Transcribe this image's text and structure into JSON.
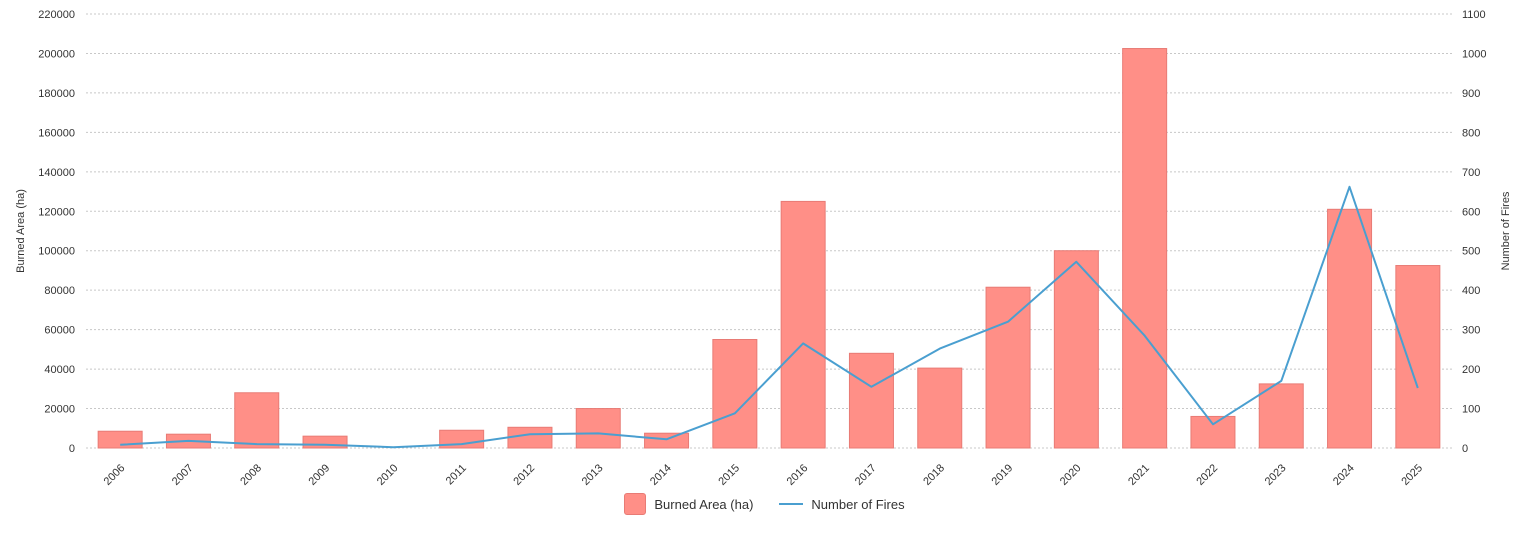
{
  "chart_data": {
    "type": "bar",
    "categories": [
      "2006",
      "2007",
      "2008",
      "2009",
      "2010",
      "2011",
      "2012",
      "2013",
      "2014",
      "2015",
      "2016",
      "2017",
      "2018",
      "2019",
      "2020",
      "2021",
      "2022",
      "2023",
      "2024",
      "2025"
    ],
    "series": [
      {
        "name": "Burned Area (ha)",
        "type": "bar",
        "axis": "left",
        "color": "#ff8f87",
        "stroke": "#e87b75",
        "values": [
          8500,
          7000,
          28000,
          6000,
          0,
          9000,
          10500,
          20000,
          7500,
          55000,
          125000,
          48000,
          40500,
          81500,
          100000,
          202500,
          16000,
          32500,
          121000,
          92500
        ]
      },
      {
        "name": "Number of Fires",
        "type": "line",
        "axis": "right",
        "color": "#4a9fd0",
        "values": [
          8,
          18,
          10,
          8,
          2,
          10,
          35,
          37,
          22,
          88,
          265,
          155,
          252,
          320,
          472,
          285,
          60,
          170,
          662,
          152
        ]
      }
    ],
    "y_left": {
      "label": "Burned Area (ha)",
      "min": 0,
      "max": 220000,
      "ticks": [
        "0",
        "20000",
        "40000",
        "60000",
        "80000",
        "100000",
        "120000",
        "140000",
        "160000",
        "180000",
        "200000",
        "220000"
      ]
    },
    "y_right": {
      "label": "Number of Fires",
      "min": 0,
      "max": 1100,
      "ticks": [
        "0",
        "100",
        "200",
        "300",
        "400",
        "500",
        "600",
        "700",
        "800",
        "900",
        "1000",
        "1100"
      ]
    },
    "grid": true,
    "legend_position": "bottom-center"
  },
  "legend": {
    "bar_label": "Burned Area (ha)",
    "line_label": "Number of Fires"
  }
}
